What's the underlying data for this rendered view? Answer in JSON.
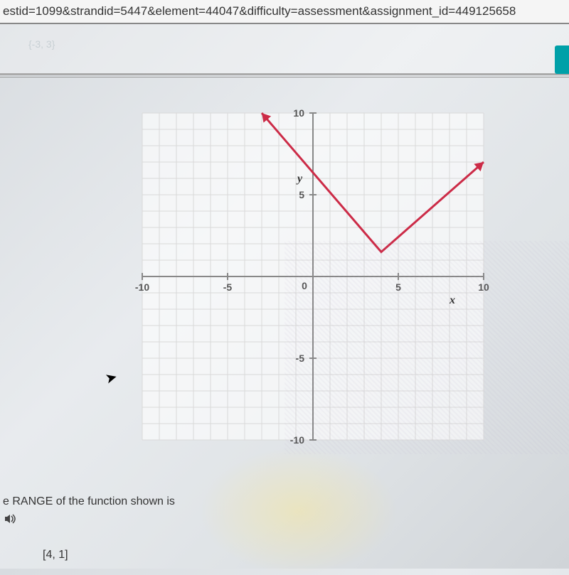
{
  "url_bar": "estid=1099&strandid=5447&element=44047&difficulty=assessment&assignment_id=449125658",
  "ghost_label": "{-3, 3}",
  "chart": {
    "type": "line",
    "background_color": "#ffffff",
    "grid_color": "#d9d9d9",
    "axis_color": "#888888",
    "line_color": "#cc2b47",
    "line_width": 3,
    "xlim": [
      -10,
      10
    ],
    "ylim": [
      -10,
      10
    ],
    "major_ticks": [
      -10,
      -5,
      0,
      5,
      10
    ],
    "tick_fontsize": 14,
    "x_axis_label": "x",
    "y_axis_label": "y",
    "axis_label_fontsize": 16,
    "series": {
      "points": [
        {
          "x": -3,
          "y": 10,
          "arrow": true
        },
        {
          "x": 4,
          "y": 1.5
        },
        {
          "x": 10,
          "y": 7,
          "arrow": true
        }
      ]
    }
  },
  "question": {
    "prompt_suffix": "e RANGE of the function shown is",
    "audio_icon": "sound-icon",
    "answer_option": "[4, 1]"
  }
}
